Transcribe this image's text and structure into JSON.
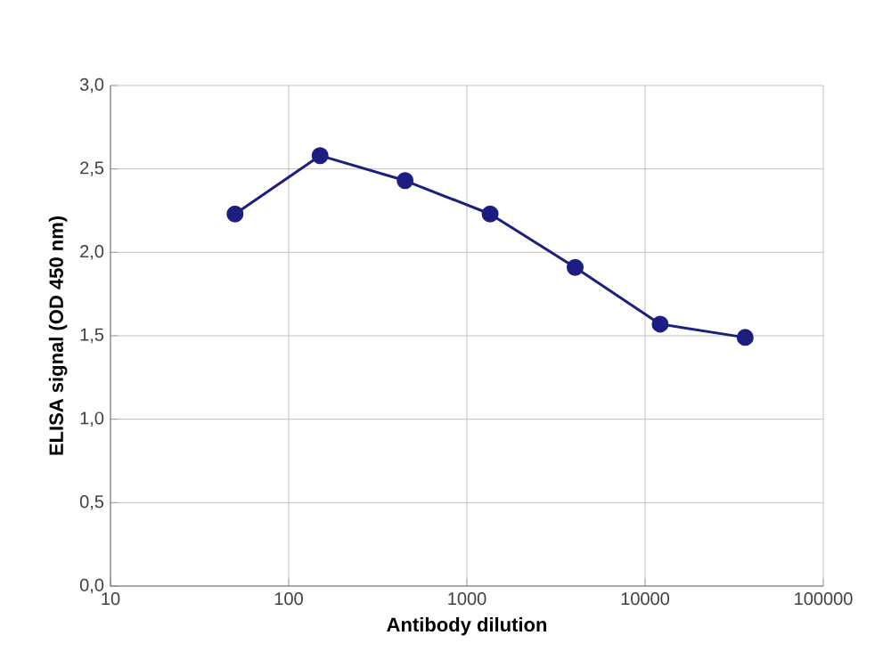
{
  "chart_data": {
    "type": "line",
    "xlabel": "Antibody dilution",
    "ylabel": "ELISA signal (OD 450 nm)",
    "x": [
      50,
      150,
      450,
      1350,
      4050,
      12150,
      36450
    ],
    "series": [
      {
        "color": "#1c1f80",
        "values": [
          2.23,
          2.58,
          2.43,
          2.23,
          1.91,
          1.57,
          1.49
        ]
      }
    ],
    "log": "x",
    "xlim": [
      10,
      100000
    ],
    "xticks": [
      10,
      100,
      1000,
      10000,
      100000
    ],
    "ylim": [
      0,
      3
    ],
    "yticks": [
      {
        "value": 0,
        "label": "0,0"
      },
      {
        "value": 0.5,
        "label": "0,5"
      },
      {
        "value": 1,
        "label": "1,0"
      },
      {
        "value": 1.5,
        "label": "1,5"
      },
      {
        "value": 2,
        "label": "2,0"
      },
      {
        "value": 2.5,
        "label": "2,5"
      },
      {
        "value": 3,
        "label": "3,0"
      }
    ],
    "grid": true,
    "marker": "circle",
    "line_style": "solid"
  }
}
